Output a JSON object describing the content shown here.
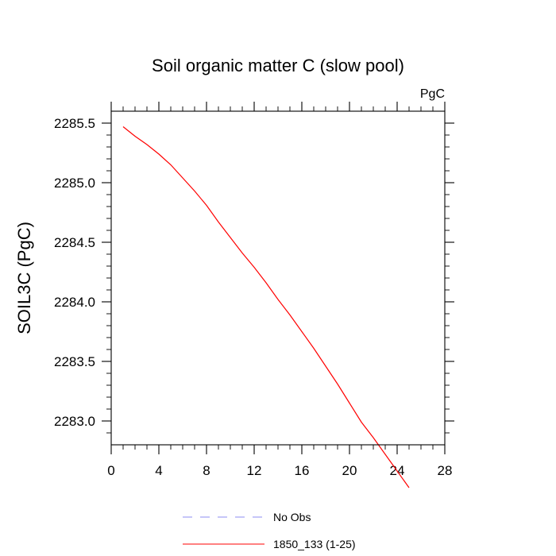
{
  "chart_data": {
    "type": "line",
    "title": "Soil organic matter C (slow pool)",
    "units": "PgC",
    "xlabel": "",
    "ylabel": "SOIL3C  (PgC)",
    "xlim": [
      0,
      28
    ],
    "ylim": [
      2282.8,
      2285.6
    ],
    "x_ticks": [
      0,
      4,
      8,
      12,
      16,
      20,
      24,
      28
    ],
    "y_ticks": [
      2283.0,
      2283.5,
      2284.0,
      2284.5,
      2285.0,
      2285.5
    ],
    "y_tick_labels": [
      "2283.0",
      "2283.5",
      "2284.0",
      "2284.5",
      "2285.0",
      "2285.5"
    ],
    "grid": false,
    "legend_position": "bottom",
    "series": [
      {
        "name": "No Obs",
        "color": "#8c8cf0",
        "style": "dashed",
        "x": [],
        "y": []
      },
      {
        "name": "1850_133 (1-25)",
        "color": "#ff0000",
        "style": "solid",
        "x": [
          1,
          2,
          3,
          4,
          5,
          6,
          7,
          8,
          9,
          10,
          11,
          12,
          13,
          14,
          15,
          16,
          17,
          18,
          19,
          20,
          21,
          22,
          23,
          24,
          25
        ],
        "y": [
          2285.47,
          2285.39,
          2285.32,
          2285.24,
          2285.15,
          2285.04,
          2284.93,
          2284.81,
          2284.67,
          2284.54,
          2284.41,
          2284.29,
          2284.16,
          2284.02,
          2283.89,
          2283.75,
          2283.61,
          2283.46,
          2283.31,
          2283.15,
          2282.99,
          2282.86,
          2282.72,
          2282.58,
          2282.44
        ]
      }
    ]
  }
}
